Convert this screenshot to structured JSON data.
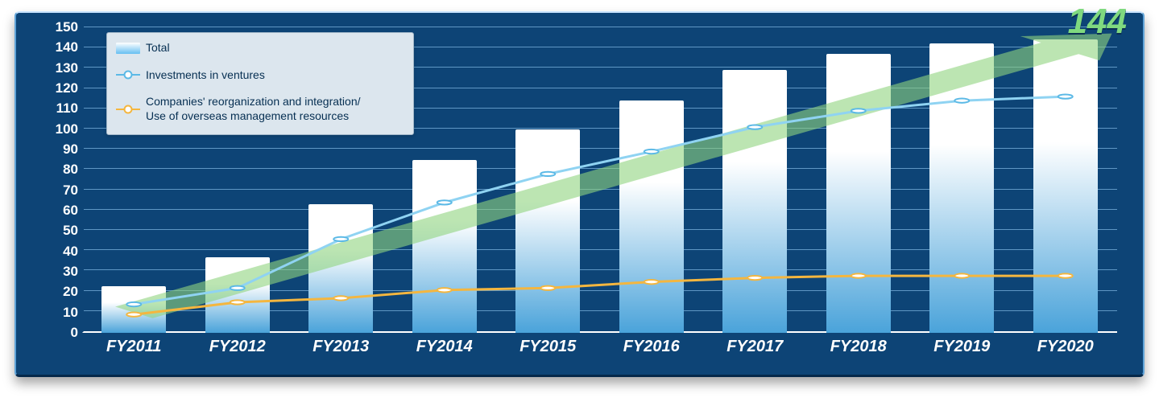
{
  "chart": {
    "type": "bar+line",
    "background_color": "#0d4476",
    "grid_color": "#6fa6d2",
    "axis_color": "#ffffff",
    "tick_font_color": "#ffffff",
    "tick_font_size_pt": 13,
    "tick_font_weight": "bold",
    "xlabel_font_size_pt": 15,
    "xlabel_font_weight": "bold",
    "xlabel_font_style": "italic",
    "ylim": [
      0,
      150
    ],
    "ytick_step": 10,
    "yticks": [
      0,
      10,
      20,
      30,
      40,
      50,
      60,
      70,
      80,
      90,
      100,
      110,
      120,
      130,
      140,
      150
    ],
    "categories": [
      "FY2011",
      "FY2012",
      "FY2013",
      "FY2014",
      "FY2015",
      "FY2016",
      "FY2017",
      "FY2018",
      "FY2019",
      "FY2020"
    ],
    "bars": {
      "name": "Total",
      "values": [
        23,
        37,
        63,
        85,
        100,
        114,
        129,
        137,
        142,
        144
      ],
      "width": 0.62,
      "gradient_top": "#ffffff",
      "gradient_bottom": "#4aa3da"
    },
    "lines": [
      {
        "name": "Investments in ventures",
        "values": [
          14,
          22,
          46,
          64,
          78,
          89,
          101,
          109,
          114,
          116
        ],
        "color": "#8fd3f2",
        "stroke_width": 3,
        "marker": "circle",
        "marker_fill": "#ffffff",
        "marker_stroke": "#5bb9e6",
        "marker_size": 5
      },
      {
        "name": "Companies' reorganization and integration/ Use of overseas management resources",
        "values": [
          9,
          15,
          17,
          21,
          22,
          25,
          27,
          28,
          28,
          28
        ],
        "color": "#f4b63f",
        "stroke_width": 3,
        "marker": "circle",
        "marker_fill": "#ffffff",
        "marker_stroke": "#f4b63f",
        "marker_size": 5
      }
    ],
    "arrow": {
      "color": "#8fd47f",
      "opacity": 0.6,
      "start_value": 10,
      "end_value": 150
    },
    "callout": {
      "text": "144",
      "color": "#7fd97f",
      "font_size_pt": 33,
      "font_weight": "800",
      "font_style": "italic"
    },
    "legend": {
      "position": "top-left",
      "background": "#dce6ee",
      "border": "#9fb5c7",
      "font_color": "#062f52",
      "font_size_pt": 11,
      "items": [
        {
          "type": "bar",
          "label": "Total"
        },
        {
          "type": "line",
          "label": "Investments in ventures",
          "color": "#5bb9e6"
        },
        {
          "type": "line",
          "label": "Companies' reorganization and integration/\nUse of overseas management resources",
          "color": "#f4b63f"
        }
      ]
    }
  }
}
